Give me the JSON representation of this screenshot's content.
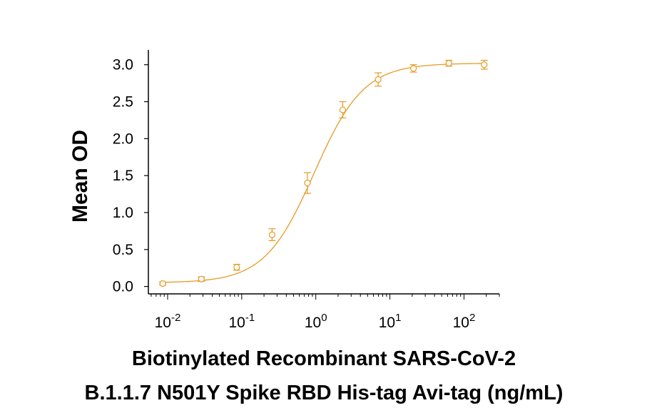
{
  "chart_data": {
    "type": "scatter",
    "ylabel": "Mean OD",
    "xlabel_lines": [
      "Biotinylated Recombinant SARS-CoV-2",
      "B.1.1.7 N501Y Spike RBD His-tag Avi-tag (ng/mL)"
    ],
    "x_scale": "log",
    "xlim": [
      0.0055,
      300
    ],
    "ylim": [
      -0.1,
      3.2
    ],
    "x_ticks": [
      {
        "value": 0.01,
        "base": "10",
        "exp": "-2"
      },
      {
        "value": 0.1,
        "base": "10",
        "exp": "-1"
      },
      {
        "value": 1,
        "base": "10",
        "exp": "0"
      },
      {
        "value": 10,
        "base": "10",
        "exp": "1"
      },
      {
        "value": 100,
        "base": "10",
        "exp": "2"
      }
    ],
    "y_ticks": [
      "0.0",
      "0.5",
      "1.0",
      "1.5",
      "2.0",
      "2.5",
      "3.0"
    ],
    "color": "#E69A23",
    "fit": {
      "model": "4PL",
      "bottom": 0.05,
      "top": 3.02,
      "ec50": 0.95,
      "hill": 1.3
    },
    "series": [
      {
        "points": [
          {
            "x": 0.0086,
            "y": 0.04,
            "err": 0.02
          },
          {
            "x": 0.0286,
            "y": 0.1,
            "err": 0.03
          },
          {
            "x": 0.0857,
            "y": 0.26,
            "err": 0.04
          },
          {
            "x": 0.257,
            "y": 0.7,
            "err": 0.08
          },
          {
            "x": 0.771,
            "y": 1.4,
            "err": 0.14
          },
          {
            "x": 2.31,
            "y": 2.39,
            "err": 0.11
          },
          {
            "x": 6.94,
            "y": 2.8,
            "err": 0.09
          },
          {
            "x": 20.8,
            "y": 2.95,
            "err": 0.05
          },
          {
            "x": 62.5,
            "y": 3.02,
            "err": 0.04
          },
          {
            "x": 187.5,
            "y": 3.0,
            "err": 0.06
          }
        ]
      }
    ]
  }
}
